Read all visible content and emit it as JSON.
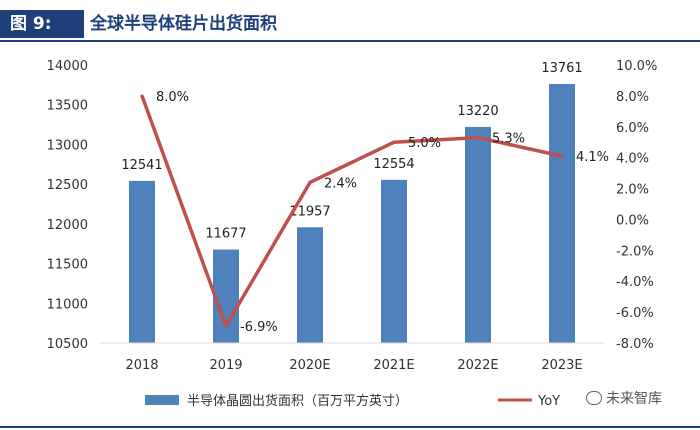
{
  "header": {
    "tag": "图 9:",
    "title": "全球半导体硅片出货面积"
  },
  "watermark": {
    "icon": "wechat-icon",
    "text": "未来智库"
  },
  "chart_data": {
    "type": "bar",
    "categories": [
      "2018",
      "2019",
      "2020E",
      "2021E",
      "2022E",
      "2023E"
    ],
    "series": [
      {
        "name": "半导体晶圆出货面积（百万平方英寸）",
        "type": "bar",
        "axis": "left",
        "color": "#4f81bd",
        "values": [
          12541,
          11677,
          11957,
          12554,
          13220,
          13761
        ],
        "labels": [
          "12541",
          "11677",
          "11957",
          "12554",
          "13220",
          "13761"
        ]
      },
      {
        "name": "YoY",
        "type": "line",
        "axis": "right",
        "color": "#c0504d",
        "values": [
          8.0,
          -6.9,
          2.4,
          5.0,
          5.3,
          4.1
        ],
        "labels": [
          "8.0%",
          "-6.9%",
          "2.4%",
          "5.0%",
          "5.3%",
          "4.1%"
        ]
      }
    ],
    "y_left": {
      "min": 10500,
      "max": 14000,
      "ticks": [
        "14000",
        "13500",
        "13000",
        "12500",
        "12000",
        "11500",
        "11000",
        "10500"
      ]
    },
    "y_right": {
      "min": -8,
      "max": 10,
      "ticks": [
        "10.0%",
        "8.0%",
        "6.0%",
        "4.0%",
        "2.0%",
        "0.0%",
        "-2.0%",
        "-4.0%",
        "-6.0%",
        "-8.0%"
      ]
    },
    "legend": {
      "position": "bottom",
      "bar_label": "半导体晶圆出货面积（百万平方英寸）",
      "line_label": "YoY"
    }
  }
}
